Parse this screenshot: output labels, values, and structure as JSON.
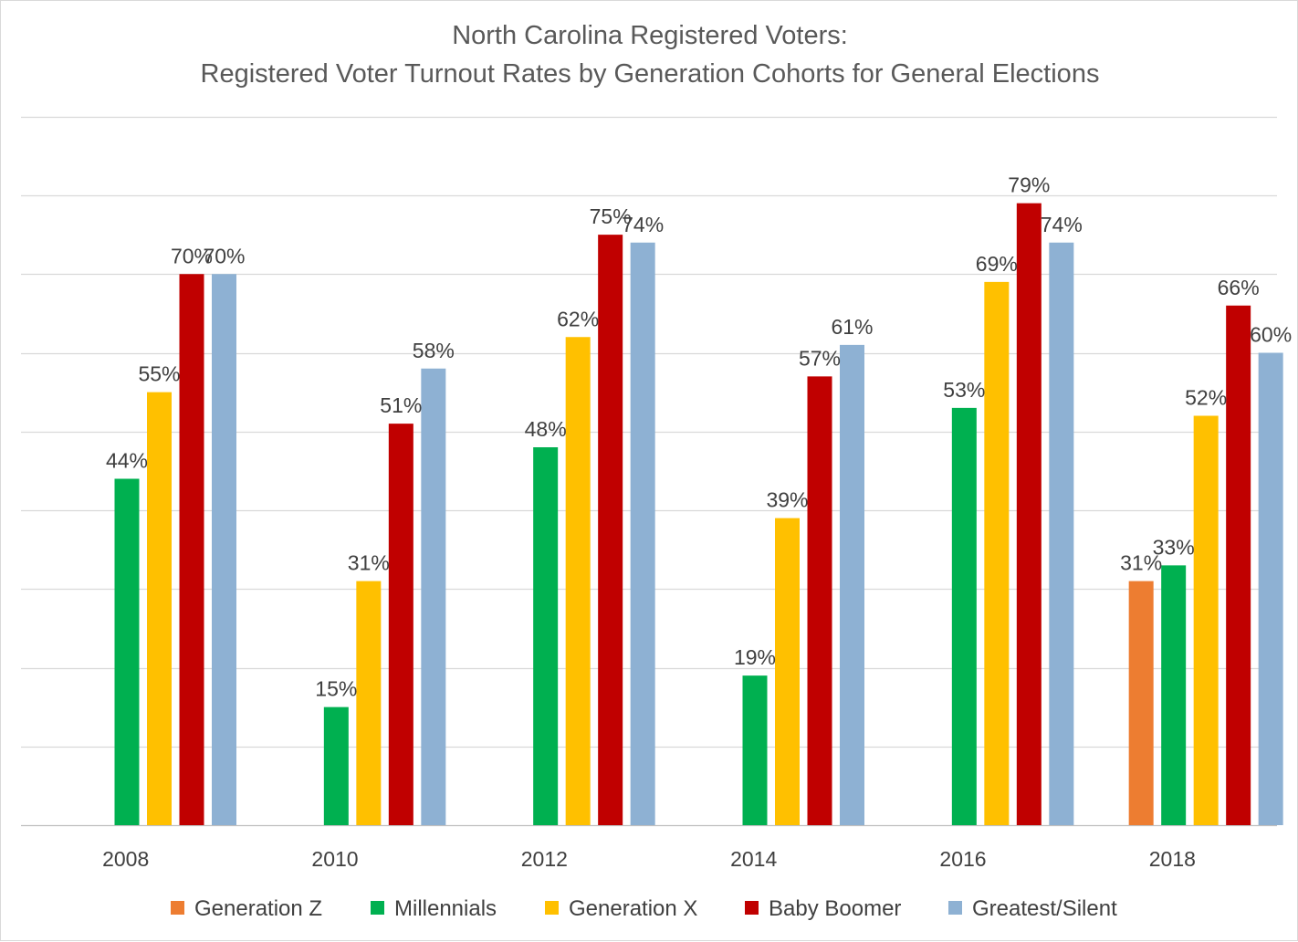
{
  "chart_data": {
    "type": "bar",
    "title": "North Carolina Registered Voters:",
    "subtitle": "Registered Voter Turnout Rates by Generation Cohorts for General Elections",
    "categories": [
      "2008",
      "2010",
      "2012",
      "2014",
      "2016",
      "2018"
    ],
    "series": [
      {
        "name": "Generation Z",
        "color": "#ED7D31",
        "values": [
          null,
          null,
          null,
          null,
          null,
          31
        ],
        "labels": [
          "",
          "",
          "",
          "",
          "",
          "31%"
        ]
      },
      {
        "name": "Millennials",
        "color": "#00B050",
        "values": [
          44,
          15,
          48,
          19,
          53,
          33
        ],
        "labels": [
          "44%",
          "15%",
          "48%",
          "19%",
          "53%",
          "33%"
        ]
      },
      {
        "name": "Generation X",
        "color": "#FFC000",
        "values": [
          55,
          31,
          62,
          39,
          69,
          52
        ],
        "labels": [
          "55%",
          "31%",
          "62%",
          "39%",
          "69%",
          "52%"
        ]
      },
      {
        "name": "Baby Boomer",
        "color": "#C00000",
        "values": [
          70,
          51,
          75,
          57,
          79,
          66
        ],
        "labels": [
          "70%",
          "51%",
          "75%",
          "57%",
          "79%",
          "66%"
        ]
      },
      {
        "name": "Greatest/Silent",
        "color": "#8EB1D3",
        "values": [
          70,
          58,
          74,
          61,
          74,
          60
        ],
        "labels": [
          "70%",
          "58%",
          "74%",
          "61%",
          "74%",
          "60%"
        ]
      }
    ],
    "ylim": [
      0,
      90
    ],
    "ytick_step": 10,
    "grid": true,
    "legend": "bottom",
    "xlabel": "",
    "ylabel": ""
  }
}
